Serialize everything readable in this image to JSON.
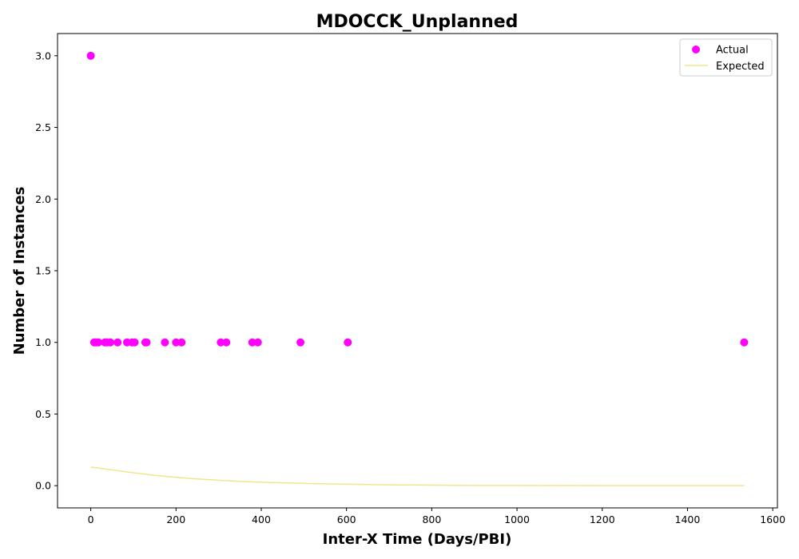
{
  "chart_data": {
    "type": "scatter",
    "title": "MDOCCK_Unplanned",
    "xlabel": "Inter-X Time (Days/PBI)",
    "ylabel": "Number of Instances",
    "xlim": [
      -78,
      1611
    ],
    "ylim": [
      -0.155,
      3.155
    ],
    "x_ticks": [
      0,
      200,
      400,
      600,
      800,
      1000,
      1200,
      1400,
      1600
    ],
    "y_ticks": [
      0.0,
      0.5,
      1.0,
      1.5,
      2.0,
      2.5,
      3.0
    ],
    "x_tick_labels": [
      "0",
      "200",
      "400",
      "600",
      "800",
      "1000",
      "1200",
      "1400",
      "1600"
    ],
    "y_tick_labels": [
      "0.0",
      "0.5",
      "1.0",
      "1.5",
      "2.0",
      "2.5",
      "3.0"
    ],
    "grid": false,
    "legend_position": "top-right",
    "series": [
      {
        "name": "Actual",
        "kind": "scatter",
        "color": "#ff00ff",
        "points": [
          {
            "x": 0,
            "y": 3
          },
          {
            "x": 8,
            "y": 1
          },
          {
            "x": 12,
            "y": 1
          },
          {
            "x": 18,
            "y": 1
          },
          {
            "x": 33,
            "y": 1
          },
          {
            "x": 38,
            "y": 1
          },
          {
            "x": 46,
            "y": 1
          },
          {
            "x": 63,
            "y": 1
          },
          {
            "x": 85,
            "y": 1
          },
          {
            "x": 97,
            "y": 1
          },
          {
            "x": 103,
            "y": 1
          },
          {
            "x": 128,
            "y": 1
          },
          {
            "x": 131,
            "y": 1
          },
          {
            "x": 174,
            "y": 1
          },
          {
            "x": 200,
            "y": 1
          },
          {
            "x": 213,
            "y": 1
          },
          {
            "x": 305,
            "y": 1
          },
          {
            "x": 318,
            "y": 1
          },
          {
            "x": 379,
            "y": 1
          },
          {
            "x": 392,
            "y": 1
          },
          {
            "x": 492,
            "y": 1
          },
          {
            "x": 603,
            "y": 1
          },
          {
            "x": 1533,
            "y": 1
          }
        ]
      },
      {
        "name": "Expected",
        "kind": "line",
        "color": "#f0e68c",
        "points": [
          {
            "x": 0,
            "y": 0.13
          },
          {
            "x": 50,
            "y": 0.11
          },
          {
            "x": 100,
            "y": 0.09
          },
          {
            "x": 150,
            "y": 0.072
          },
          {
            "x": 200,
            "y": 0.058
          },
          {
            "x": 250,
            "y": 0.047
          },
          {
            "x": 300,
            "y": 0.038
          },
          {
            "x": 350,
            "y": 0.03
          },
          {
            "x": 400,
            "y": 0.024
          },
          {
            "x": 500,
            "y": 0.016
          },
          {
            "x": 600,
            "y": 0.01
          },
          {
            "x": 700,
            "y": 0.006
          },
          {
            "x": 800,
            "y": 0.004
          },
          {
            "x": 900,
            "y": 0.002
          },
          {
            "x": 1000,
            "y": 0.0015
          },
          {
            "x": 1100,
            "y": 0.001
          },
          {
            "x": 1200,
            "y": 0.0006
          },
          {
            "x": 1300,
            "y": 0.0004
          },
          {
            "x": 1400,
            "y": 0.0002
          },
          {
            "x": 1533,
            "y": 0.0001
          }
        ]
      }
    ]
  }
}
